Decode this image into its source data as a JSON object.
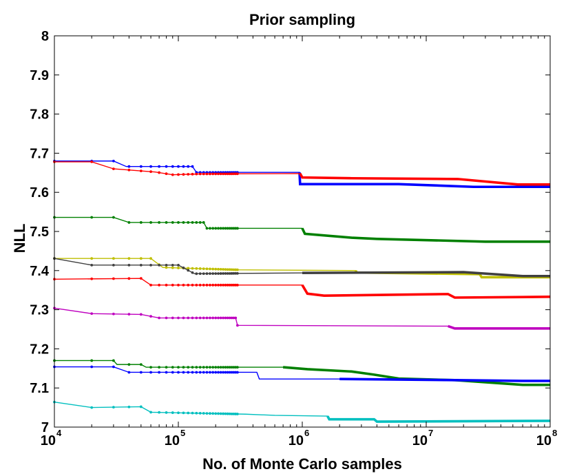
{
  "chart_data": {
    "type": "line",
    "title": "Prior sampling",
    "xlabel": "No. of Monte Carlo samples",
    "ylabel": "NLL",
    "xscale": "log",
    "xlim": [
      10000,
      100000000
    ],
    "ylim": [
      7.0,
      8.0
    ],
    "y_ticks": [
      "7",
      "7.1",
      "7.2",
      "7.3",
      "7.4",
      "7.5",
      "7.6",
      "7.7",
      "7.8",
      "7.9",
      "8"
    ],
    "x_ticks": [
      {
        "base": "10",
        "exp": "4"
      },
      {
        "base": "10",
        "exp": "5"
      },
      {
        "base": "10",
        "exp": "6"
      },
      {
        "base": "10",
        "exp": "7"
      },
      {
        "base": "10",
        "exp": "8"
      }
    ],
    "grid": false,
    "series": [
      {
        "name": "blue-top",
        "color": "#0000ff",
        "points": [
          [
            10000,
            7.68
          ],
          [
            30000,
            7.68
          ],
          [
            38000,
            7.666
          ],
          [
            130000,
            7.666
          ],
          [
            140000,
            7.651
          ],
          [
            950000,
            7.651
          ],
          [
            960000,
            7.621
          ],
          [
            6000000,
            7.621
          ],
          [
            24000000,
            7.614
          ],
          [
            100000000,
            7.614
          ]
        ]
      },
      {
        "name": "red-top",
        "color": "#ff0000",
        "points": [
          [
            10000,
            7.678
          ],
          [
            20000,
            7.678
          ],
          [
            30000,
            7.66
          ],
          [
            65000,
            7.652
          ],
          [
            90000,
            7.645
          ],
          [
            150000,
            7.647
          ],
          [
            960000,
            7.648
          ],
          [
            1000000,
            7.638
          ],
          [
            2500000,
            7.636
          ],
          [
            18000000,
            7.634
          ],
          [
            55000000,
            7.62
          ],
          [
            100000000,
            7.62
          ]
        ]
      },
      {
        "name": "green-upper",
        "color": "#008000",
        "points": [
          [
            10000,
            7.536
          ],
          [
            30000,
            7.536
          ],
          [
            40000,
            7.523
          ],
          [
            160000,
            7.523
          ],
          [
            170000,
            7.508
          ],
          [
            1000000,
            7.508
          ],
          [
            1050000,
            7.494
          ],
          [
            2500000,
            7.484
          ],
          [
            4000000,
            7.481
          ],
          [
            30000000,
            7.474
          ],
          [
            100000000,
            7.474
          ]
        ]
      },
      {
        "name": "yellow",
        "color": "#bfbf00",
        "points": [
          [
            10000,
            7.431
          ],
          [
            60000,
            7.431
          ],
          [
            75000,
            7.408
          ],
          [
            300000,
            7.402
          ],
          [
            2700000,
            7.4
          ],
          [
            2750000,
            7.395
          ],
          [
            27000000,
            7.391
          ],
          [
            28000000,
            7.383
          ],
          [
            100000000,
            7.383
          ]
        ]
      },
      {
        "name": "dark-gray",
        "color": "#404040",
        "points": [
          [
            10000,
            7.431
          ],
          [
            20000,
            7.414
          ],
          [
            100000,
            7.414
          ],
          [
            135000,
            7.392
          ],
          [
            1000000,
            7.394
          ],
          [
            20000000,
            7.396
          ],
          [
            60000000,
            7.386
          ],
          [
            100000000,
            7.386
          ]
        ]
      },
      {
        "name": "red-middle",
        "color": "#ff0000",
        "points": [
          [
            10000,
            7.378
          ],
          [
            50000,
            7.38
          ],
          [
            60000,
            7.363
          ],
          [
            1000000,
            7.363
          ],
          [
            1100000,
            7.341
          ],
          [
            1500000,
            7.336
          ],
          [
            15000000,
            7.34
          ],
          [
            17000000,
            7.331
          ],
          [
            100000000,
            7.333
          ]
        ]
      },
      {
        "name": "magenta",
        "color": "#bf00bf",
        "points": [
          [
            10000,
            7.304
          ],
          [
            20000,
            7.29
          ],
          [
            50000,
            7.288
          ],
          [
            70000,
            7.279
          ],
          [
            290000,
            7.279
          ],
          [
            300000,
            7.26
          ],
          [
            15000000,
            7.258
          ],
          [
            17000000,
            7.252
          ],
          [
            100000000,
            7.252
          ]
        ]
      },
      {
        "name": "green-lower",
        "color": "#008000",
        "points": [
          [
            10000,
            7.17
          ],
          [
            30000,
            7.17
          ],
          [
            32000,
            7.16
          ],
          [
            50000,
            7.16
          ],
          [
            55000,
            7.153
          ],
          [
            700000,
            7.153
          ],
          [
            1100000,
            7.148
          ],
          [
            2500000,
            7.142
          ],
          [
            3800000,
            7.134
          ],
          [
            6000000,
            7.124
          ],
          [
            17000000,
            7.12
          ],
          [
            60000000,
            7.108
          ],
          [
            100000000,
            7.108
          ]
        ]
      },
      {
        "name": "blue-lower",
        "color": "#0000ff",
        "points": [
          [
            10000,
            7.154
          ],
          [
            30000,
            7.154
          ],
          [
            40000,
            7.14
          ],
          [
            430000,
            7.14
          ],
          [
            450000,
            7.123
          ],
          [
            2000000,
            7.123
          ],
          [
            17000000,
            7.12
          ],
          [
            60000000,
            7.118
          ],
          [
            100000000,
            7.118
          ]
        ]
      },
      {
        "name": "cyan",
        "color": "#00bfbf",
        "points": [
          [
            10000,
            7.064
          ],
          [
            20000,
            7.05
          ],
          [
            50000,
            7.052
          ],
          [
            60000,
            7.038
          ],
          [
            350000,
            7.033
          ],
          [
            600000,
            7.03
          ],
          [
            1600000,
            7.028
          ],
          [
            1650000,
            7.02
          ],
          [
            3800000,
            7.02
          ],
          [
            4000000,
            7.014
          ],
          [
            100000000,
            7.016
          ]
        ]
      }
    ]
  }
}
